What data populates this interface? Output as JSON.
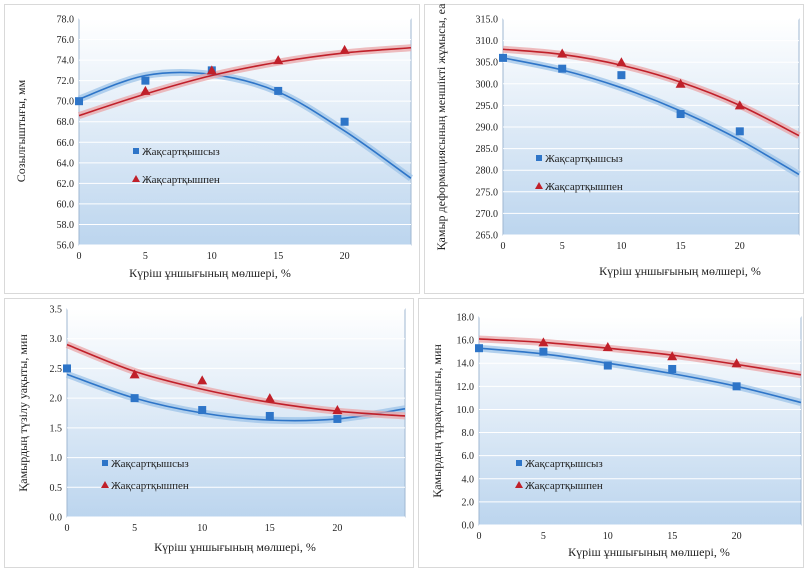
{
  "colors": {
    "series1": "#2e75c8",
    "series2": "#c0202a",
    "band1": "#9cc3e8",
    "band2": "#eaa5a8",
    "gridline": "#ffffff"
  },
  "chart_data": [
    {
      "type": "scatter",
      "xlabel": "Күріш ұншығының мөлшері, %",
      "ylabel": "Созылғыштығы, мм",
      "xlim": [
        0,
        25
      ],
      "ylim": [
        56,
        78
      ],
      "xticks": [
        "0",
        "5",
        "10",
        "15",
        "20"
      ],
      "yticks": [
        "56.0",
        "58.0",
        "60.0",
        "62.0",
        "64.0",
        "66.0",
        "68.0",
        "70.0",
        "72.0",
        "74.0",
        "76.0",
        "78.0"
      ],
      "legend_position": "left-middle",
      "series": [
        {
          "name": "Жақсартқышсыз",
          "marker": "square",
          "x": [
            0,
            5,
            10,
            15,
            20
          ],
          "y": [
            70,
            72,
            73,
            71,
            68
          ],
          "trend": [
            70.2,
            72.5,
            72.6,
            70.9,
            67.1,
            62.5
          ]
        },
        {
          "name": "Жақсартқышпен",
          "marker": "triangle",
          "x": [
            5,
            10,
            15,
            20
          ],
          "y": [
            71,
            73,
            74,
            75
          ],
          "trend": [
            68.6,
            70.7,
            72.5,
            73.8,
            74.7,
            75.2
          ]
        }
      ]
    },
    {
      "type": "scatter",
      "xlabel": "Күріш ұншығының мөлшері, %",
      "ylabel": "Қамыр деформациясының меншікті жұмысы, еа",
      "xlim": [
        0,
        25
      ],
      "ylim": [
        265,
        315
      ],
      "xticks": [
        "0",
        "5",
        "10",
        "15",
        "20"
      ],
      "yticks": [
        "265.0",
        "270.0",
        "275.0",
        "280.0",
        "285.0",
        "290.0",
        "295.0",
        "300.0",
        "305.0",
        "310.0",
        "315.0"
      ],
      "legend_position": "left-middle",
      "series": [
        {
          "name": "Жақсартқышсыз",
          "marker": "square",
          "x": [
            0,
            5,
            10,
            15,
            20
          ],
          "y": [
            306,
            303.5,
            302,
            293,
            289
          ],
          "trend": [
            306,
            303.2,
            299.1,
            293.7,
            287,
            279
          ]
        },
        {
          "name": "Жақсартқышпен",
          "marker": "triangle",
          "x": [
            5,
            10,
            15,
            20
          ],
          "y": [
            307,
            305,
            300,
            295
          ],
          "trend": [
            308,
            306.8,
            304.3,
            300.4,
            295,
            288
          ]
        }
      ]
    },
    {
      "type": "scatter",
      "xlabel": "Күріш ұншығының мөлшері, %",
      "ylabel": "Қамырдың түзілу уақыты, мин",
      "xlim": [
        0,
        25
      ],
      "ylim": [
        0,
        3.5
      ],
      "xticks": [
        "0",
        "5",
        "10",
        "15",
        "20"
      ],
      "yticks": [
        "0.0",
        "0.5",
        "1.0",
        "1.5",
        "2.0",
        "2.5",
        "3.0",
        "3.5"
      ],
      "legend_position": "left-bottom",
      "series": [
        {
          "name": "Жақсартқышсыз",
          "marker": "square",
          "x": [
            0,
            5,
            10,
            15,
            20
          ],
          "y": [
            2.5,
            2.0,
            1.8,
            1.7,
            1.65
          ],
          "trend": [
            2.4,
            2.0,
            1.75,
            1.63,
            1.65,
            1.82
          ]
        },
        {
          "name": "Жақсартқышпен",
          "marker": "triangle",
          "x": [
            5,
            10,
            15,
            20
          ],
          "y": [
            2.4,
            2.3,
            2.0,
            1.8
          ],
          "trend": [
            2.9,
            2.45,
            2.15,
            1.93,
            1.78,
            1.7
          ]
        }
      ]
    },
    {
      "type": "scatter",
      "xlabel": "Күріш ұншығының мөлшері, %",
      "ylabel": "Қамырдың тұрақтылығы, мин",
      "xlim": [
        0,
        25
      ],
      "ylim": [
        0,
        18
      ],
      "xticks": [
        "0",
        "5",
        "10",
        "15",
        "20"
      ],
      "yticks": [
        "0.0",
        "2.0",
        "4.0",
        "6.0",
        "8.0",
        "10.0",
        "12.0",
        "14.0",
        "16.0",
        "18.0"
      ],
      "legend_position": "left-bottom",
      "series": [
        {
          "name": "Жақсартқышсыз",
          "marker": "square",
          "x": [
            0,
            5,
            10,
            15,
            20
          ],
          "y": [
            15.3,
            15,
            13.8,
            13.5,
            12
          ],
          "trend": [
            15.3,
            14.8,
            14.0,
            13.1,
            12.0,
            10.6
          ]
        },
        {
          "name": "Жақсартқышпен",
          "marker": "triangle",
          "x": [
            5,
            10,
            15,
            20
          ],
          "y": [
            15.8,
            15.4,
            14.6,
            14
          ],
          "trend": [
            16.1,
            15.8,
            15.3,
            14.7,
            13.9,
            13.0
          ]
        }
      ]
    }
  ]
}
